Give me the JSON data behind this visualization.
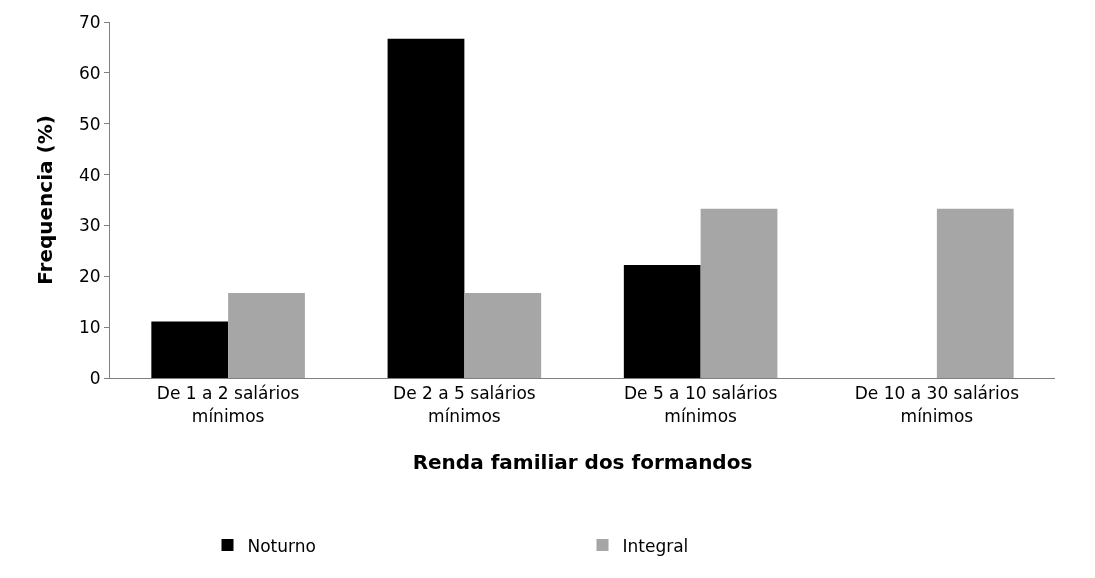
{
  "chart_data": {
    "type": "bar",
    "xlabel": "Renda familiar dos formandos",
    "ylabel": "Frequencia (%)",
    "categories": [
      "De 1 a 2 salários mínimos",
      "De 2 a 5 salários mínimos",
      "De 5 a 10 salários mínimos",
      "De 10 a 30 salários mínimos"
    ],
    "series": [
      {
        "name": "Noturno",
        "color": "#000000",
        "values": [
          11.1,
          66.7,
          22.2,
          0
        ]
      },
      {
        "name": "Integral",
        "color": "#a6a6a6",
        "values": [
          16.7,
          16.7,
          33.3,
          33.3
        ]
      }
    ],
    "ylim": [
      0,
      70
    ],
    "yticks": [
      0,
      10,
      20,
      30,
      40,
      50,
      60,
      70
    ],
    "legend": "bottom"
  }
}
